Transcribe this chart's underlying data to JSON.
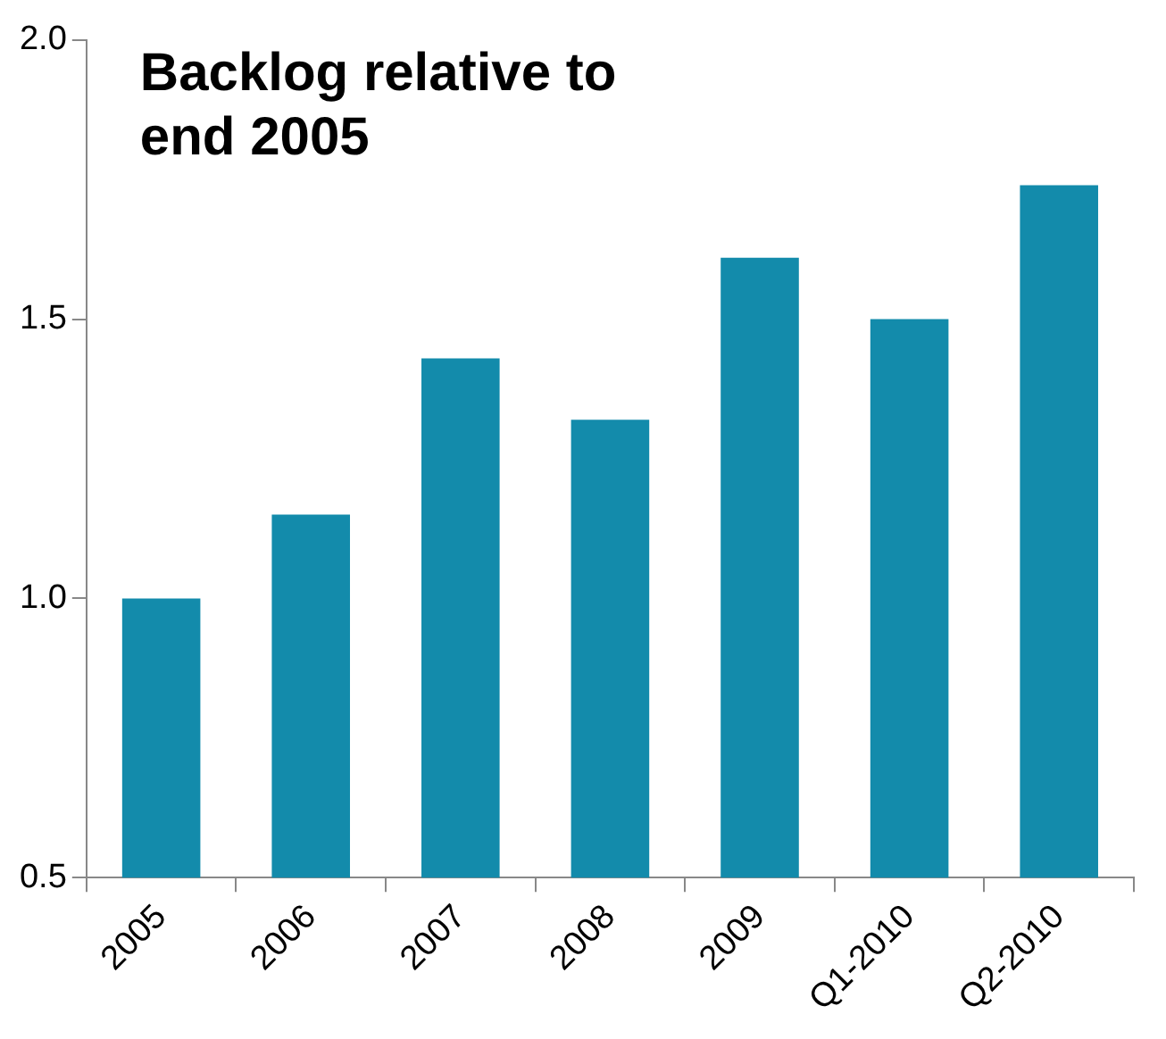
{
  "chart_data": {
    "type": "bar",
    "title": "Backlog relative to end 2005",
    "categories": [
      "2005",
      "2006",
      "2007",
      "2008",
      "2009",
      "Q1-2010",
      "Q2-2010"
    ],
    "values": [
      1.0,
      1.15,
      1.43,
      1.32,
      1.61,
      1.5,
      1.74
    ],
    "color": "#138bab",
    "ylim": [
      0.5,
      2.0
    ],
    "yticks": [
      {
        "value": 0.5,
        "label": "0.5"
      },
      {
        "value": 1,
        "label": "1.0"
      },
      {
        "value": 1.5,
        "label": "1.5"
      },
      {
        "value": 2,
        "label": "2.0"
      }
    ],
    "grid": false,
    "legend": false
  }
}
